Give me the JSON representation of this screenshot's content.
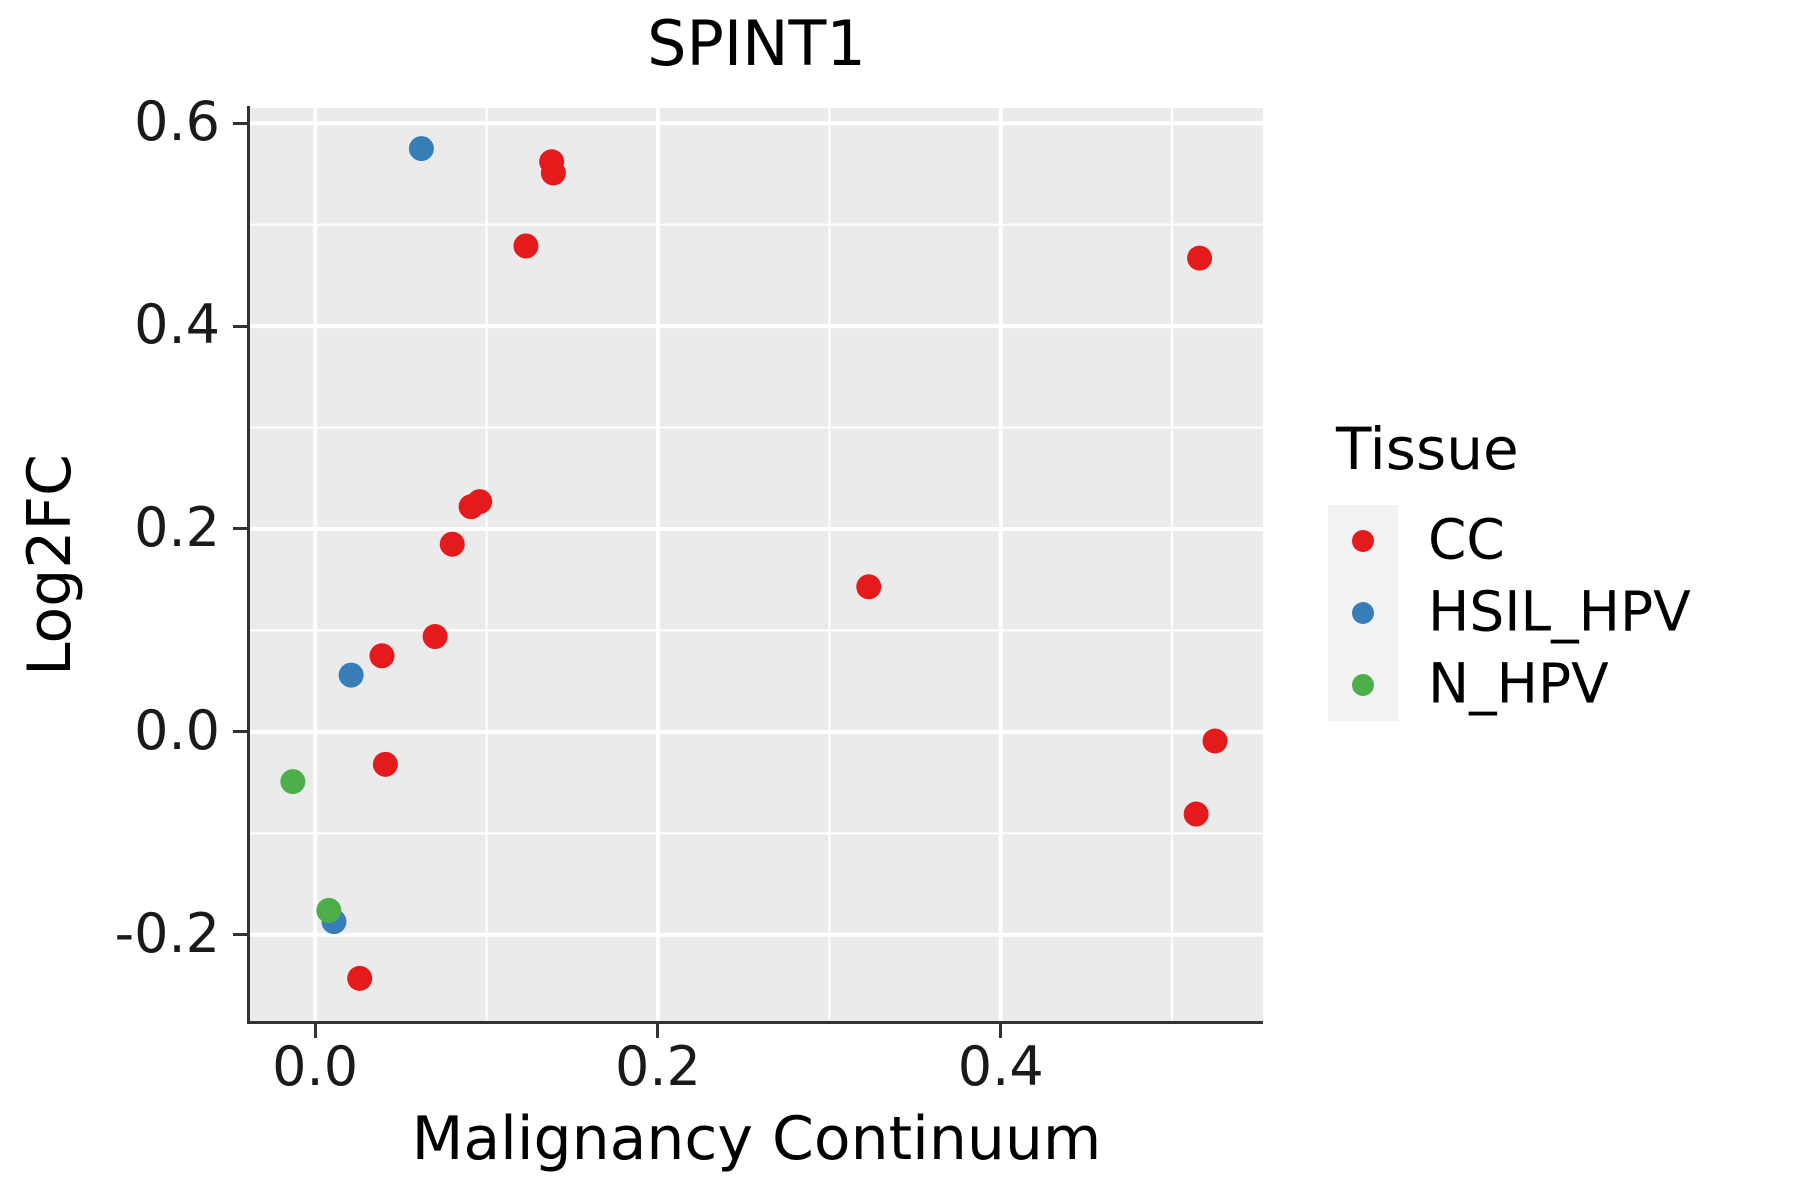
{
  "chart_data": {
    "type": "scatter",
    "title": "SPINT1",
    "xlabel": "Malignancy Continuum",
    "ylabel": "Log2FC",
    "xlim": [
      -0.038,
      0.553
    ],
    "ylim": [
      -0.286,
      0.615
    ],
    "grid": true,
    "panel_bg": "#ebebeb",
    "grid_color": "#ffffff",
    "axis_color": "#333333",
    "x_ticks": {
      "values": [
        0.0,
        0.2,
        0.4
      ],
      "labels": [
        "0.0",
        "0.2",
        "0.4"
      ]
    },
    "y_ticks": {
      "values": [
        0.6,
        0.4,
        0.2,
        0.0,
        -0.2
      ],
      "labels": [
        "0.6",
        "0.4",
        "0.2",
        "0.0",
        "-0.2"
      ]
    },
    "x_minor_ticks": [
      0.1,
      0.3,
      0.5
    ],
    "y_minor_ticks": [
      0.5,
      0.3,
      0.1,
      -0.1
    ],
    "legend": {
      "title": "Tissue",
      "position": "right",
      "key_bg": "#f2f2f2"
    },
    "series": [
      {
        "name": "CC",
        "color": "#e41a1c",
        "points": [
          [
            0.138,
            0.562
          ],
          [
            0.139,
            0.551
          ],
          [
            0.123,
            0.479
          ],
          [
            0.516,
            0.467
          ],
          [
            0.096,
            0.227
          ],
          [
            0.091,
            0.222
          ],
          [
            0.08,
            0.185
          ],
          [
            0.323,
            0.143
          ],
          [
            0.07,
            0.094
          ],
          [
            0.039,
            0.075
          ],
          [
            0.041,
            -0.032
          ],
          [
            0.525,
            -0.009
          ],
          [
            0.514,
            -0.081
          ],
          [
            0.026,
            -0.243
          ]
        ]
      },
      {
        "name": "HSIL_HPV",
        "color": "#377eb8",
        "points": [
          [
            0.062,
            0.575
          ],
          [
            0.021,
            0.056
          ],
          [
            0.011,
            -0.187
          ]
        ]
      },
      {
        "name": "N_HPV",
        "color": "#4daf4a",
        "points": [
          [
            -0.013,
            -0.049
          ],
          [
            0.008,
            -0.176
          ]
        ]
      }
    ]
  }
}
